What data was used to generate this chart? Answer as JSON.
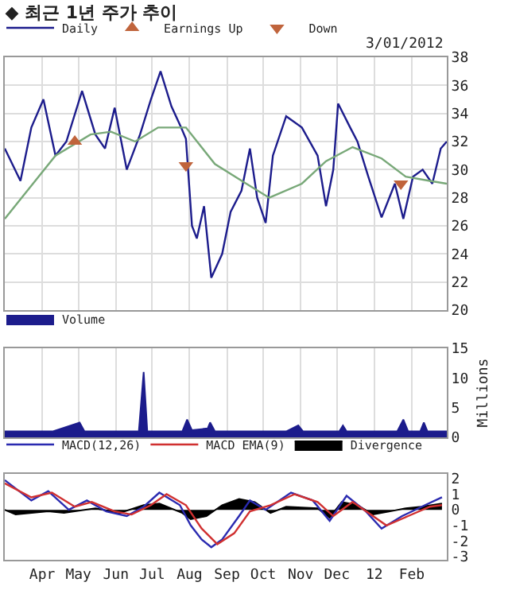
{
  "chart_data": [
    {
      "type": "line",
      "title": "◆ 최근 1년 주가 추이",
      "annotations": [
        "3/01/2012"
      ],
      "xlim": [
        "2011-03-01",
        "2012-03-01"
      ],
      "xticks": [
        {
          "value": "2011-04-01",
          "label": null
        },
        {
          "value": "2011-05-01",
          "label": null
        },
        {
          "value": "2011-06-01",
          "label": null
        },
        {
          "value": "2011-07-01",
          "label": null
        },
        {
          "value": "2011-08-01",
          "label": null
        },
        {
          "value": "2011-09-01",
          "label": null
        },
        {
          "value": "2011-10-01",
          "label": null
        },
        {
          "value": "2011-11-01",
          "label": null
        },
        {
          "value": "2011-12-01",
          "label": null
        },
        {
          "value": "2012-01-01",
          "label": null
        },
        {
          "value": "2012-02-01",
          "label": null
        }
      ],
      "ylim": [
        20,
        38
      ],
      "yticks": [
        20,
        22,
        24,
        26,
        28,
        30,
        32,
        34,
        36,
        38
      ],
      "tick_labels": "y",
      "grid": true,
      "legend": "top",
      "series": [
        {
          "name": "Daily",
          "color": "#1c1c8c",
          "x": [
            "2011-03-01",
            "2011-03-14",
            "2011-03-23",
            "2011-04-02",
            "2011-04-12",
            "2011-04-21",
            "2011-05-04",
            "2011-05-15",
            "2011-05-23",
            "2011-05-31",
            "2011-06-10",
            "2011-06-21",
            "2011-06-30",
            "2011-07-08",
            "2011-07-17",
            "2011-07-25",
            "2011-07-29",
            "2011-08-03",
            "2011-08-07",
            "2011-08-13",
            "2011-08-19",
            "2011-08-28",
            "2011-09-04",
            "2011-09-13",
            "2011-09-20",
            "2011-09-26",
            "2011-10-03",
            "2011-10-09",
            "2011-10-20",
            "2011-11-02",
            "2011-11-15",
            "2011-11-22",
            "2011-11-28",
            "2011-12-02",
            "2011-12-12",
            "2011-12-18",
            "2011-12-27",
            "2012-01-07",
            "2012-01-18",
            "2012-01-25",
            "2012-02-02",
            "2012-02-10",
            "2012-02-18",
            "2012-02-25",
            "2012-03-01"
          ],
          "values": [
            31.5,
            29.2,
            33,
            35,
            31,
            32,
            35.6,
            32.5,
            31.5,
            34.4,
            30,
            32.5,
            35,
            37,
            34.5,
            33,
            32.2,
            26,
            25.1,
            27.4,
            22.3,
            24,
            27,
            28.5,
            31.5,
            28,
            26.2,
            31,
            33.8,
            33,
            31,
            27.4,
            30,
            34.7,
            33,
            32,
            29.5,
            26.6,
            29,
            26.5,
            29.5,
            30,
            29,
            31.5,
            32
          ]
        },
        {
          "color": "#78a878",
          "x": [
            "2011-03-01",
            "2011-04-12",
            "2011-05-11",
            "2011-05-28",
            "2011-06-17",
            "2011-07-06",
            "2011-07-29",
            "2011-08-22",
            "2011-09-17",
            "2011-10-06",
            "2011-11-02",
            "2011-11-22",
            "2011-12-14",
            "2012-01-07",
            "2012-01-27",
            "2012-02-16",
            "2012-03-01"
          ],
          "values": [
            26.5,
            31,
            32.5,
            32.7,
            32,
            33,
            33,
            30.4,
            29,
            28,
            29,
            30.6,
            31.6,
            30.8,
            29.5,
            29.2,
            29
          ]
        },
        {
          "type": "scatter",
          "name": "Earnings Up",
          "color": "#c0643c",
          "marker": "triangle",
          "x": [
            "2011-04-28"
          ],
          "values": [
            32
          ]
        },
        {
          "type": "scatter",
          "name": "Down",
          "color": "#c0643c",
          "marker": "triangle-down",
          "x": [
            "2011-07-29",
            "2012-01-23"
          ],
          "values": [
            30.3,
            29
          ]
        }
      ]
    },
    {
      "type": "area",
      "ylabel": "Millions",
      "xlim": [
        "2011-03-01",
        "2012-03-01"
      ],
      "xticks": [
        {
          "value": "2011-04-01",
          "label": null
        },
        {
          "value": "2011-05-01",
          "label": null
        },
        {
          "value": "2011-06-01",
          "label": null
        },
        {
          "value": "2011-07-01",
          "label": null
        },
        {
          "value": "2011-08-01",
          "label": null
        },
        {
          "value": "2011-09-01",
          "label": null
        },
        {
          "value": "2011-10-01",
          "label": null
        },
        {
          "value": "2011-11-01",
          "label": null
        },
        {
          "value": "2011-12-01",
          "label": null
        },
        {
          "value": "2012-01-01",
          "label": null
        },
        {
          "value": "2012-02-01",
          "label": null
        }
      ],
      "ylim": [
        0,
        15
      ],
      "yticks": [
        0,
        5,
        10,
        15
      ],
      "tick_labels": "y",
      "grid": "x",
      "legend": "top",
      "series": [
        {
          "name": "Volume",
          "color": "#1c1c8c",
          "x": [
            "2011-03-01",
            "2011-04-10",
            "2011-05-02",
            "2011-05-06",
            "2011-06-20",
            "2011-06-24",
            "2011-06-27",
            "2011-07-26",
            "2011-07-30",
            "2011-08-03",
            "2011-08-16",
            "2011-08-18",
            "2011-08-22",
            "2011-10-20",
            "2011-10-30",
            "2011-11-03",
            "2011-12-03",
            "2011-12-06",
            "2011-12-09",
            "2012-01-20",
            "2012-01-25",
            "2012-01-29",
            "2012-02-08",
            "2012-02-11",
            "2012-02-14",
            "2012-03-01"
          ],
          "values": [
            1,
            1,
            2.5,
            1,
            1,
            11,
            1,
            1,
            3,
            1.2,
            1.5,
            2.5,
            1,
            1,
            2,
            1,
            1,
            2,
            1,
            1,
            3,
            1,
            1,
            2.5,
            1,
            1
          ]
        }
      ]
    },
    {
      "type": "line",
      "xlim": [
        "2011-03-01",
        "2012-03-01"
      ],
      "xticks": [
        {
          "value": "2011-04-01",
          "label": "Apr"
        },
        {
          "value": "2011-05-01",
          "label": "May"
        },
        {
          "value": "2011-06-01",
          "label": "Jun"
        },
        {
          "value": "2011-07-01",
          "label": "Jul"
        },
        {
          "value": "2011-08-01",
          "label": "Aug"
        },
        {
          "value": "2011-09-01",
          "label": "Sep"
        },
        {
          "value": "2011-10-01",
          "label": "Oct"
        },
        {
          "value": "2011-11-01",
          "label": "Nov"
        },
        {
          "value": "2011-12-01",
          "label": "Dec"
        },
        {
          "value": "2012-01-01",
          "label": "12"
        },
        {
          "value": "2012-02-01",
          "label": "Feb"
        }
      ],
      "ylim": [
        -3.2,
        2.3
      ],
      "yticks": [
        -3,
        -2,
        -1,
        0,
        1,
        2
      ],
      "legend": "top",
      "series": [
        {
          "name": "MACD(12,26)",
          "color": "#2a2ab0",
          "x": [
            "2011-03-01",
            "2011-03-23",
            "2011-04-06",
            "2011-04-23",
            "2011-05-08",
            "2011-05-24",
            "2011-06-10",
            "2011-06-24",
            "2011-07-07",
            "2011-07-24",
            "2011-08-02",
            "2011-08-11",
            "2011-08-19",
            "2011-08-28",
            "2011-09-11",
            "2011-09-20",
            "2011-10-03",
            "2011-10-24",
            "2011-11-11",
            "2011-11-25",
            "2011-12-09",
            "2011-12-25",
            "2012-01-07",
            "2012-01-24",
            "2012-02-12",
            "2012-02-26"
          ],
          "values": [
            1.9,
            0.6,
            1.2,
            0,
            0.6,
            -0.1,
            -0.4,
            0.2,
            1.1,
            0.3,
            -1,
            -1.9,
            -2.4,
            -1.9,
            -0.4,
            0.6,
            0,
            1.1,
            0.6,
            -0.7,
            0.9,
            -0.1,
            -1.2,
            -0.4,
            0.3,
            0.8
          ]
        },
        {
          "name": "MACD EMA(9)",
          "color": "#d03030",
          "x": [
            "2011-03-01",
            "2011-03-23",
            "2011-04-09",
            "2011-04-28",
            "2011-05-12",
            "2011-05-31",
            "2011-06-14",
            "2011-06-30",
            "2011-07-13",
            "2011-07-29",
            "2011-08-11",
            "2011-08-24",
            "2011-09-07",
            "2011-09-20",
            "2011-10-07",
            "2011-10-27",
            "2011-11-15",
            "2011-11-28",
            "2011-12-14",
            "2011-12-29",
            "2012-01-11",
            "2012-01-29",
            "2012-02-16",
            "2012-02-26"
          ],
          "values": [
            1.7,
            0.8,
            1.1,
            0.2,
            0.5,
            -0.1,
            -0.3,
            0.3,
            1,
            0.3,
            -1.2,
            -2.2,
            -1.5,
            -0.1,
            0.3,
            1,
            0.5,
            -0.4,
            0.5,
            -0.3,
            -1,
            -0.4,
            0.2,
            0.3
          ]
        },
        {
          "type": "area",
          "name": "Divergence",
          "color": "#000000",
          "x": [
            "2011-03-01",
            "2011-03-10",
            "2011-04-06",
            "2011-04-19",
            "2011-05-15",
            "2011-06-04",
            "2011-06-24",
            "2011-07-07",
            "2011-07-26",
            "2011-08-02",
            "2011-08-15",
            "2011-08-28",
            "2011-09-11",
            "2011-09-24",
            "2011-10-07",
            "2011-10-20",
            "2011-11-15",
            "2011-11-25",
            "2011-12-05",
            "2011-12-18",
            "2011-12-31",
            "2012-01-14",
            "2012-01-27",
            "2012-02-09",
            "2012-02-26"
          ],
          "values": [
            0,
            -0.3,
            -0.1,
            -0.2,
            0.1,
            -0.2,
            0.3,
            0.4,
            -0.2,
            -0.6,
            -0.4,
            0.3,
            0.7,
            0.5,
            -0.2,
            0.2,
            0.1,
            -0.5,
            0.5,
            0.3,
            -0.3,
            -0.1,
            0.1,
            0.2,
            0.4
          ]
        }
      ]
    }
  ]
}
